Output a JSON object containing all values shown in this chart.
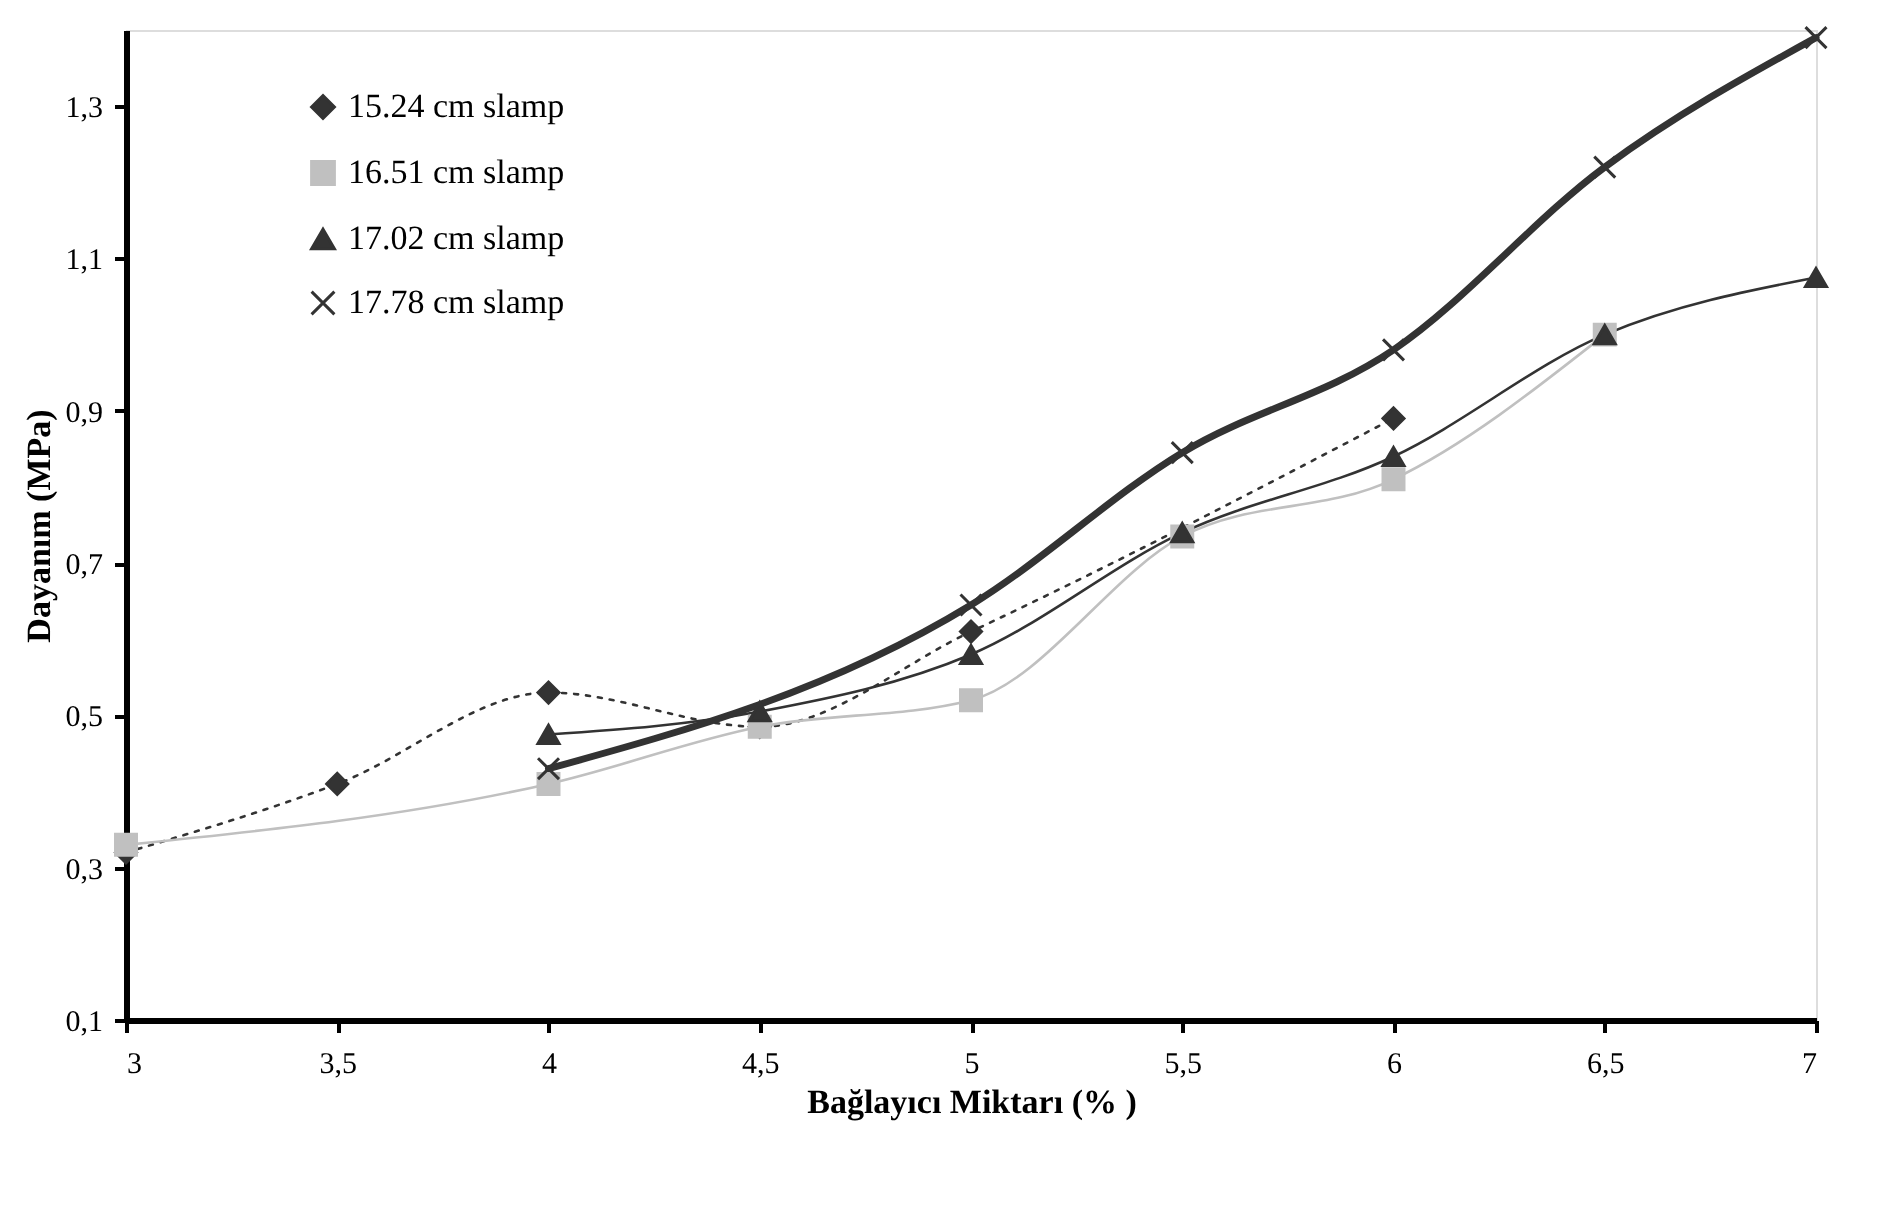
{
  "chart_data": {
    "type": "line",
    "xlabel": "Bağlayıcı Miktarı (% )",
    "ylabel": "Dayanım (MPa)",
    "xlim": [
      3,
      7
    ],
    "xticks": [
      3,
      {
        "value": 3.5,
        "label": "3,5"
      },
      4,
      {
        "value": 4.5,
        "label": "4,5"
      },
      5,
      {
        "value": 5.5,
        "label": "5,5"
      },
      6,
      {
        "value": 6.5,
        "label": "6,5"
      },
      7
    ],
    "ylim": [
      0.1,
      1.4
    ],
    "yticks": [
      {
        "value": 0.1,
        "label": "0,1"
      },
      {
        "value": 0.3,
        "label": "0,3"
      },
      {
        "value": 0.5,
        "label": "0,5"
      },
      {
        "value": 0.7,
        "label": "0,7"
      },
      {
        "value": 0.9,
        "label": "0,9"
      },
      {
        "value": 1.1,
        "label": "1,1"
      },
      {
        "value": 1.3,
        "label": "1,3"
      }
    ],
    "grid": false,
    "legend": "top left",
    "series": [
      {
        "name": "15.24 cm slamp",
        "color": "#333333",
        "marker": "diamond",
        "line_style": "dotted",
        "x": [
          3,
          3.5,
          4,
          4.5,
          5,
          6
        ],
        "values": [
          0.32,
          0.41,
          0.53,
          0.485,
          0.61,
          0.89
        ]
      },
      {
        "name": "16.51 cm slamp",
        "color": "#c0c0c0",
        "marker": "square",
        "line_style": "solid",
        "x": [
          3,
          4,
          4.5,
          5,
          5.5,
          6,
          6.5
        ],
        "values": [
          0.33,
          0.41,
          0.485,
          0.52,
          0.735,
          0.81,
          1.0
        ]
      },
      {
        "name": "17.02 cm slamp",
        "color": "#333333",
        "marker": "triangle",
        "line_style": "solid",
        "x": [
          4,
          4.5,
          5,
          5.5,
          6,
          6.5,
          7
        ],
        "values": [
          0.475,
          0.505,
          0.58,
          0.74,
          0.84,
          1.0,
          1.075
        ]
      },
      {
        "name": "17.78 cm slamp",
        "color": "#333333",
        "marker": "cross",
        "line_style": "solid",
        "x": [
          4,
          5,
          5.5,
          6,
          6.5,
          7
        ],
        "values": [
          0.43,
          0.645,
          0.845,
          0.98,
          1.22,
          1.39
        ]
      }
    ]
  }
}
